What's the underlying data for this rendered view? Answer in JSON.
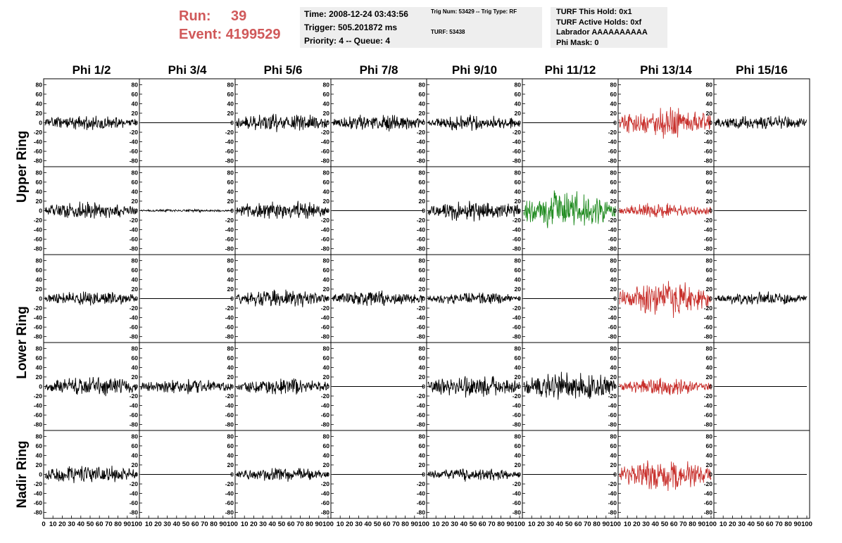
{
  "header": {
    "run_label": "Run:",
    "run_value": "39",
    "event_label": "Event:",
    "event_value": "4199529"
  },
  "info_time": {
    "line1": "Time: 2008-12-24 03:43:56",
    "line2": "Trigger: 505.201872 ms",
    "line3": "Priority: 4 -- Queue: 4"
  },
  "info_trig": {
    "line1": "Trig Num: 53429 -- Trig Type: RF",
    "line2": "TURF: 53438"
  },
  "info_turf": {
    "line1": "TURF This Hold: 0x1",
    "line2": "TURF Active Holds: 0xf",
    "line3": "Labrador AAAAAAAAAA",
    "line4": "Phi Mask: 0"
  },
  "colors": {
    "normal": "#000000",
    "red": "#c8302c",
    "green": "#1e8a1e",
    "accent_text": "#d0595a"
  },
  "chart_data": {
    "type": "line",
    "grid": false,
    "columns": [
      "Phi 1/2",
      "Phi 3/4",
      "Phi 5/6",
      "Phi 7/8",
      "Phi 9/10",
      "Phi 11/12",
      "Phi 13/14",
      "Phi 15/16"
    ],
    "ring_labels": [
      {
        "text": "Upper Ring",
        "rows": [
          0,
          1
        ]
      },
      {
        "text": "Lower Ring",
        "rows": [
          2,
          3
        ]
      },
      {
        "text": "Nadir Ring",
        "rows": [
          4
        ]
      }
    ],
    "ylim": [
      -85,
      85
    ],
    "xlim": [
      0,
      100
    ],
    "y_ticks": [
      -80,
      -60,
      -40,
      -20,
      0,
      20,
      40,
      60,
      80
    ],
    "x_tick_labels": [
      "0",
      "10",
      "20",
      "30",
      "40",
      "50",
      "60",
      "70",
      "80",
      "90",
      "100"
    ],
    "panels": [
      [
        {
          "color": "normal",
          "amp": 10,
          "seed": 11
        },
        {
          "color": "normal",
          "amp": 0,
          "seed": 12
        },
        {
          "color": "normal",
          "amp": 13,
          "seed": 13
        },
        {
          "color": "normal",
          "amp": 11,
          "seed": 14
        },
        {
          "color": "normal",
          "amp": 11,
          "seed": 15
        },
        {
          "color": "normal",
          "amp": 0,
          "seed": 16
        },
        {
          "color": "red",
          "amp": 22,
          "seed": 17
        },
        {
          "color": "normal",
          "amp": 10,
          "seed": 18
        }
      ],
      [
        {
          "color": "normal",
          "amp": 13,
          "seed": 21
        },
        {
          "color": "normal",
          "amp": 2,
          "seed": 22
        },
        {
          "color": "normal",
          "amp": 13,
          "seed": 23
        },
        {
          "color": "normal",
          "amp": 0,
          "seed": 24
        },
        {
          "color": "normal",
          "amp": 14,
          "seed": 25
        },
        {
          "color": "green",
          "amp": 26,
          "seed": 26
        },
        {
          "color": "red",
          "amp": 10,
          "seed": 27
        },
        {
          "color": "normal",
          "amp": 0,
          "seed": 28
        }
      ],
      [
        {
          "color": "normal",
          "amp": 10,
          "seed": 31
        },
        {
          "color": "normal",
          "amp": 0,
          "seed": 32
        },
        {
          "color": "normal",
          "amp": 12,
          "seed": 33
        },
        {
          "color": "normal",
          "amp": 10,
          "seed": 34
        },
        {
          "color": "normal",
          "amp": 9,
          "seed": 35
        },
        {
          "color": "normal",
          "amp": 0,
          "seed": 36
        },
        {
          "color": "red",
          "amp": 24,
          "seed": 37
        },
        {
          "color": "normal",
          "amp": 9,
          "seed": 38
        }
      ],
      [
        {
          "color": "normal",
          "amp": 13,
          "seed": 41
        },
        {
          "color": "normal",
          "amp": 10,
          "seed": 42
        },
        {
          "color": "normal",
          "amp": 11,
          "seed": 43
        },
        {
          "color": "normal",
          "amp": 0,
          "seed": 44
        },
        {
          "color": "normal",
          "amp": 15,
          "seed": 45
        },
        {
          "color": "normal",
          "amp": 20,
          "seed": 46
        },
        {
          "color": "red",
          "amp": 11,
          "seed": 47
        },
        {
          "color": "normal",
          "amp": 0,
          "seed": 48
        }
      ],
      [
        {
          "color": "normal",
          "amp": 13,
          "seed": 51
        },
        {
          "color": "normal",
          "amp": 0,
          "seed": 52
        },
        {
          "color": "normal",
          "amp": 9,
          "seed": 53
        },
        {
          "color": "normal",
          "amp": 0,
          "seed": 54
        },
        {
          "color": "normal",
          "amp": 9,
          "seed": 55
        },
        {
          "color": "normal",
          "amp": 0,
          "seed": 56
        },
        {
          "color": "red",
          "amp": 22,
          "seed": 57
        },
        {
          "color": "normal",
          "amp": 0,
          "seed": 58
        }
      ]
    ]
  }
}
